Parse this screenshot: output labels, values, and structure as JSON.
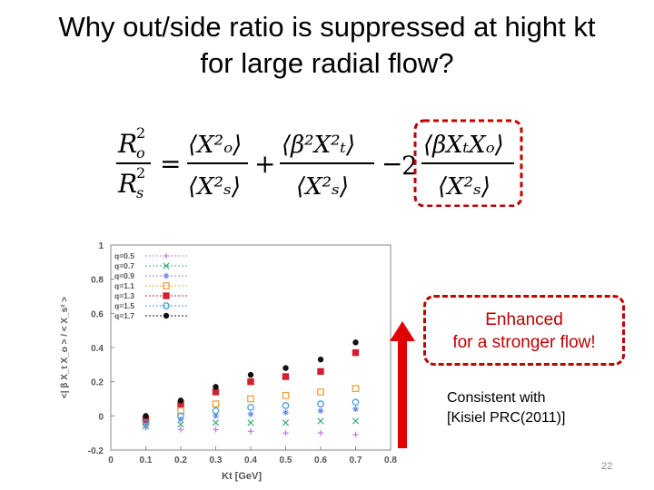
{
  "slide": {
    "title_line1": "Why out/side ratio is suppressed at hight kt",
    "title_line2": "for large radial flow?",
    "callout_line1": "Enhanced",
    "callout_line2": "for a stronger flow!",
    "note_line1": "Consistent with",
    "note_line2": "[Kisiel PRC(2011)]",
    "page_number": "22"
  },
  "colors": {
    "accent_red": "#c00000"
  },
  "formula": {
    "lhs_num": "R",
    "lhs_num_sub": "o",
    "lhs_den": "R",
    "lhs_den_sub": "s",
    "sup": "2",
    "eq": "=",
    "term1_num": "⟨X²ₒ⟩",
    "term1_den": "⟨X²ₛ⟩",
    "plus": "+",
    "term2_num": "⟨β²X²ₜ⟩",
    "term2_den": "⟨X²ₛ⟩",
    "minus": "−",
    "coef": "2",
    "term3_num": "⟨βXₜXₒ⟩",
    "term3_den": "⟨X²ₛ⟩"
  },
  "chart_data": {
    "type": "scatter",
    "xlabel": "Kt [GeV]",
    "ylabel": "<| β X_t X_o > / < X_s² >",
    "xlim": [
      0,
      0.8
    ],
    "ylim": [
      -0.2,
      1
    ],
    "xticks": [
      "0",
      "0.1",
      "0.2",
      "0.3",
      "0.4",
      "0.5",
      "0.6",
      "0.7",
      "0.8"
    ],
    "yticks": [
      "-0.2",
      "0",
      "0.2",
      "0.4",
      "0.6",
      "0.8",
      "1"
    ],
    "legend_position": "top-left",
    "x": [
      0.1,
      0.2,
      0.3,
      0.4,
      0.5,
      0.6,
      0.7
    ],
    "series": [
      {
        "name": "q=0.5",
        "marker": "plus",
        "color": "#c080e0",
        "values": [
          -0.07,
          -0.08,
          -0.08,
          -0.09,
          -0.1,
          -0.1,
          -0.11
        ]
      },
      {
        "name": "q=0.7",
        "marker": "x",
        "color": "#40b080",
        "values": [
          -0.06,
          -0.05,
          -0.04,
          -0.04,
          -0.04,
          -0.03,
          -0.03
        ]
      },
      {
        "name": "q=0.9",
        "marker": "star",
        "color": "#7090e0",
        "values": [
          -0.05,
          -0.02,
          0.0,
          0.01,
          0.02,
          0.03,
          0.04
        ]
      },
      {
        "name": "q=1.1",
        "marker": "square-open",
        "color": "#f0a040",
        "values": [
          -0.04,
          0.03,
          0.07,
          0.1,
          0.12,
          0.14,
          0.16
        ]
      },
      {
        "name": "q=1.3",
        "marker": "square-filled",
        "color": "#d02030",
        "values": [
          -0.02,
          0.07,
          0.14,
          0.2,
          0.23,
          0.26,
          0.37
        ]
      },
      {
        "name": "q=1.5",
        "marker": "circle-open",
        "color": "#40a0e0",
        "values": [
          -0.04,
          0.0,
          0.03,
          0.05,
          0.06,
          0.07,
          0.08
        ]
      },
      {
        "name": "q=1.7",
        "marker": "circle-filled",
        "color": "#111111",
        "values": [
          0.0,
          0.09,
          0.17,
          0.24,
          0.28,
          0.33,
          0.43
        ]
      }
    ]
  }
}
